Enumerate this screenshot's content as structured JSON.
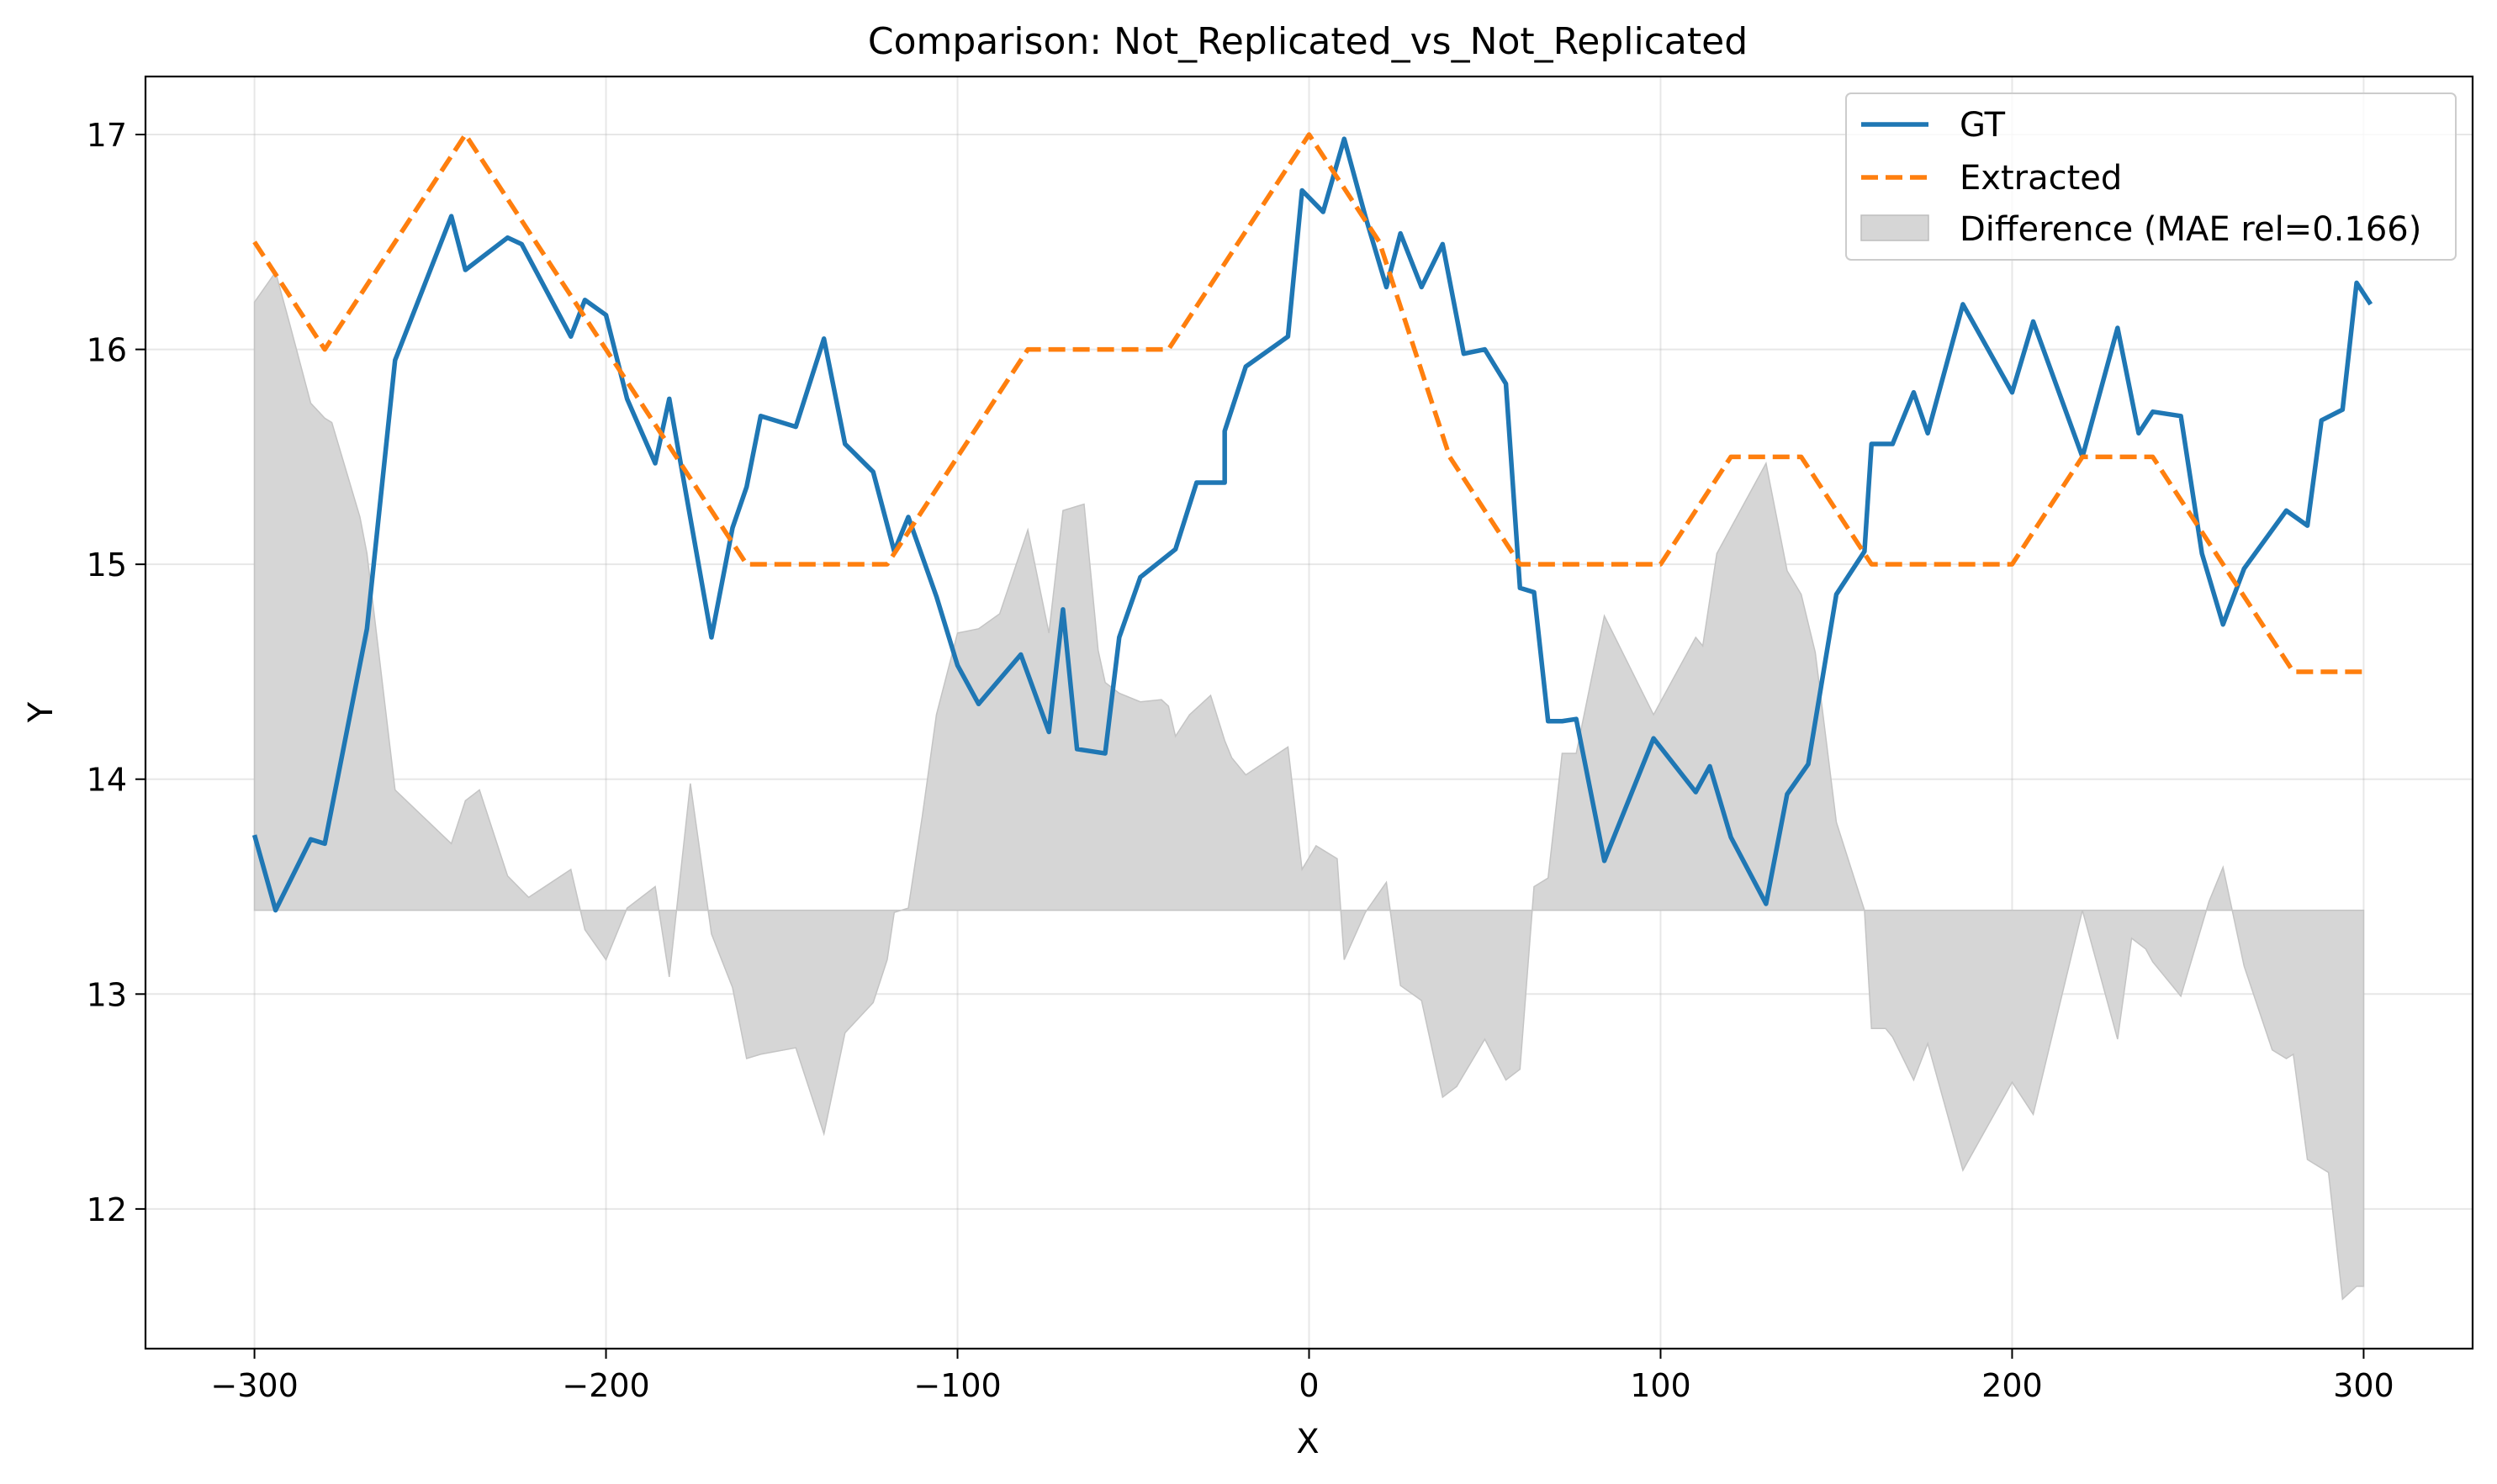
{
  "chart_data": {
    "type": "line",
    "title": "Comparison: Not_Replicated_vs_Not_Replicated",
    "xlabel": "X",
    "ylabel": "Y",
    "xlim": [
      -331,
      331
    ],
    "ylim": [
      11.35,
      17.27
    ],
    "xticks": [
      -300,
      -200,
      -100,
      0,
      100,
      200,
      300
    ],
    "xtick_labels": [
      "−300",
      "−200",
      "−100",
      "0",
      "100",
      "200",
      "300"
    ],
    "yticks": [
      12,
      13,
      14,
      15,
      16,
      17
    ],
    "ytick_labels": [
      "12",
      "13",
      "14",
      "15",
      "16",
      "17"
    ],
    "grid": true,
    "legend_position": "top-right",
    "legend": [
      {
        "label": "GT",
        "kind": "line",
        "color": "#1f77b4"
      },
      {
        "label": "Extracted",
        "kind": "dashed",
        "color": "#ff7f0e"
      },
      {
        "label": "Difference (MAE rel=0.166)",
        "kind": "patch",
        "color": "#d6d6d6"
      }
    ],
    "series": [
      {
        "name": "GT",
        "color": "#1f77b4",
        "style": "solid",
        "x": [
          -300,
          -294,
          -284,
          -280,
          -268,
          -260,
          -244,
          -240,
          -228,
          -224,
          -210,
          -206,
          -200,
          -194,
          -186,
          -182,
          -170,
          -164,
          -160,
          -156,
          -146,
          -138,
          -132,
          -124,
          -118,
          -114,
          -106,
          -100,
          -94,
          -82,
          -74,
          -70,
          -66,
          -58,
          -54,
          -48,
          -38,
          -32,
          -24,
          -24,
          -18,
          -6,
          -2,
          4,
          10,
          16,
          22,
          26,
          32,
          38,
          44,
          50,
          56,
          60,
          64,
          68,
          72,
          76,
          84,
          98,
          110,
          114,
          120,
          130,
          136,
          142,
          150,
          158,
          160,
          166,
          172,
          176,
          186,
          200,
          206,
          220,
          230,
          236,
          240,
          248,
          254,
          260,
          266,
          278,
          284,
          288,
          294,
          298,
          302
        ],
        "values": [
          13.74,
          13.39,
          13.72,
          13.7,
          14.7,
          15.95,
          16.62,
          16.37,
          16.52,
          16.49,
          16.06,
          16.23,
          16.16,
          15.77,
          15.47,
          15.77,
          14.66,
          15.17,
          15.36,
          15.69,
          15.64,
          16.05,
          15.56,
          15.43,
          15.06,
          15.22,
          14.85,
          14.53,
          14.35,
          14.58,
          14.22,
          14.79,
          14.14,
          14.12,
          14.66,
          14.94,
          15.07,
          15.38,
          15.38,
          15.62,
          15.92,
          16.06,
          16.74,
          16.64,
          16.98,
          16.62,
          16.29,
          16.54,
          16.29,
          16.49,
          15.98,
          16.0,
          15.84,
          14.89,
          14.87,
          14.27,
          14.27,
          14.28,
          13.62,
          14.19,
          13.94,
          14.06,
          13.73,
          13.42,
          13.93,
          14.07,
          14.86,
          15.06,
          15.56,
          15.56,
          15.8,
          15.61,
          16.21,
          15.8,
          16.13,
          15.5,
          16.1,
          15.61,
          15.71,
          15.69,
          15.05,
          14.72,
          14.98,
          15.25,
          15.18,
          15.67,
          15.72,
          16.31,
          16.21
        ]
      },
      {
        "name": "Extracted",
        "color": "#ff7f0e",
        "style": "dashed",
        "x": [
          -300,
          -280,
          -240,
          -160,
          -120,
          -80,
          -40,
          0,
          20,
          40,
          60,
          100,
          120,
          140,
          160,
          200,
          220,
          240,
          280,
          300
        ],
        "values": [
          16.5,
          16.0,
          17.0,
          15.0,
          15.0,
          16.0,
          16.0,
          17.0,
          16.5,
          15.5,
          15.0,
          15.0,
          15.5,
          15.5,
          15.0,
          15.0,
          15.5,
          15.5,
          14.5,
          14.5
        ]
      },
      {
        "name": "Difference (MAE rel=0.166)",
        "kind": "fill_between",
        "color": "#d6d6d6",
        "baseline": 13.39,
        "x": [
          -300,
          -294,
          -290,
          -284,
          -280,
          -278,
          -270,
          -268,
          -260,
          -244,
          -240,
          -236,
          -228,
          -222,
          -210,
          -206,
          -200,
          -194,
          -186,
          -182,
          -176,
          -170,
          -164,
          -160,
          -156,
          -146,
          -138,
          -132,
          -124,
          -120,
          -118,
          -114,
          -110,
          -106,
          -100,
          -94,
          -88,
          -80,
          -74,
          -70,
          -66,
          -64,
          -60,
          -58,
          -54,
          -48,
          -42,
          -40,
          -38,
          -34,
          -28,
          -24,
          -22,
          -18,
          -6,
          -2,
          2,
          8,
          10,
          16,
          22,
          26,
          32,
          38,
          42,
          50,
          56,
          60,
          64,
          68,
          72,
          76,
          84,
          98,
          110,
          112,
          116,
          120,
          130,
          136,
          140,
          144,
          150,
          158,
          160,
          164,
          166,
          172,
          176,
          186,
          200,
          206,
          220,
          230,
          234,
          238,
          240,
          248,
          256,
          260,
          266,
          274,
          278,
          280,
          284,
          286,
          290,
          294,
          298,
          300
        ],
        "values": [
          16.22,
          16.36,
          16.12,
          15.75,
          15.68,
          15.66,
          15.22,
          15.05,
          13.95,
          13.7,
          13.9,
          13.95,
          13.55,
          13.45,
          13.58,
          13.3,
          13.16,
          13.4,
          13.5,
          13.08,
          13.98,
          13.28,
          13.03,
          12.7,
          12.72,
          12.75,
          12.35,
          12.82,
          12.96,
          13.16,
          13.38,
          13.4,
          13.83,
          14.3,
          14.68,
          14.7,
          14.77,
          15.16,
          14.68,
          15.25,
          15.27,
          15.28,
          14.6,
          14.45,
          14.4,
          14.36,
          14.37,
          14.34,
          14.2,
          14.3,
          14.39,
          14.18,
          14.1,
          14.02,
          14.15,
          13.58,
          13.69,
          13.63,
          13.16,
          13.38,
          13.52,
          13.04,
          12.97,
          12.52,
          12.57,
          12.79,
          12.6,
          12.65,
          13.5,
          13.54,
          14.12,
          14.12,
          14.76,
          14.3,
          14.66,
          14.62,
          15.05,
          15.17,
          15.47,
          14.97,
          14.86,
          14.59,
          13.8,
          13.39,
          12.84,
          12.84,
          12.8,
          12.6,
          12.77,
          12.18,
          12.59,
          12.44,
          13.39,
          12.79,
          13.26,
          13.21,
          13.15,
          12.99,
          13.43,
          13.59,
          13.13,
          12.74,
          12.7,
          12.72,
          12.23,
          12.21,
          12.17,
          11.58,
          11.64,
          11.64
        ]
      }
    ]
  }
}
